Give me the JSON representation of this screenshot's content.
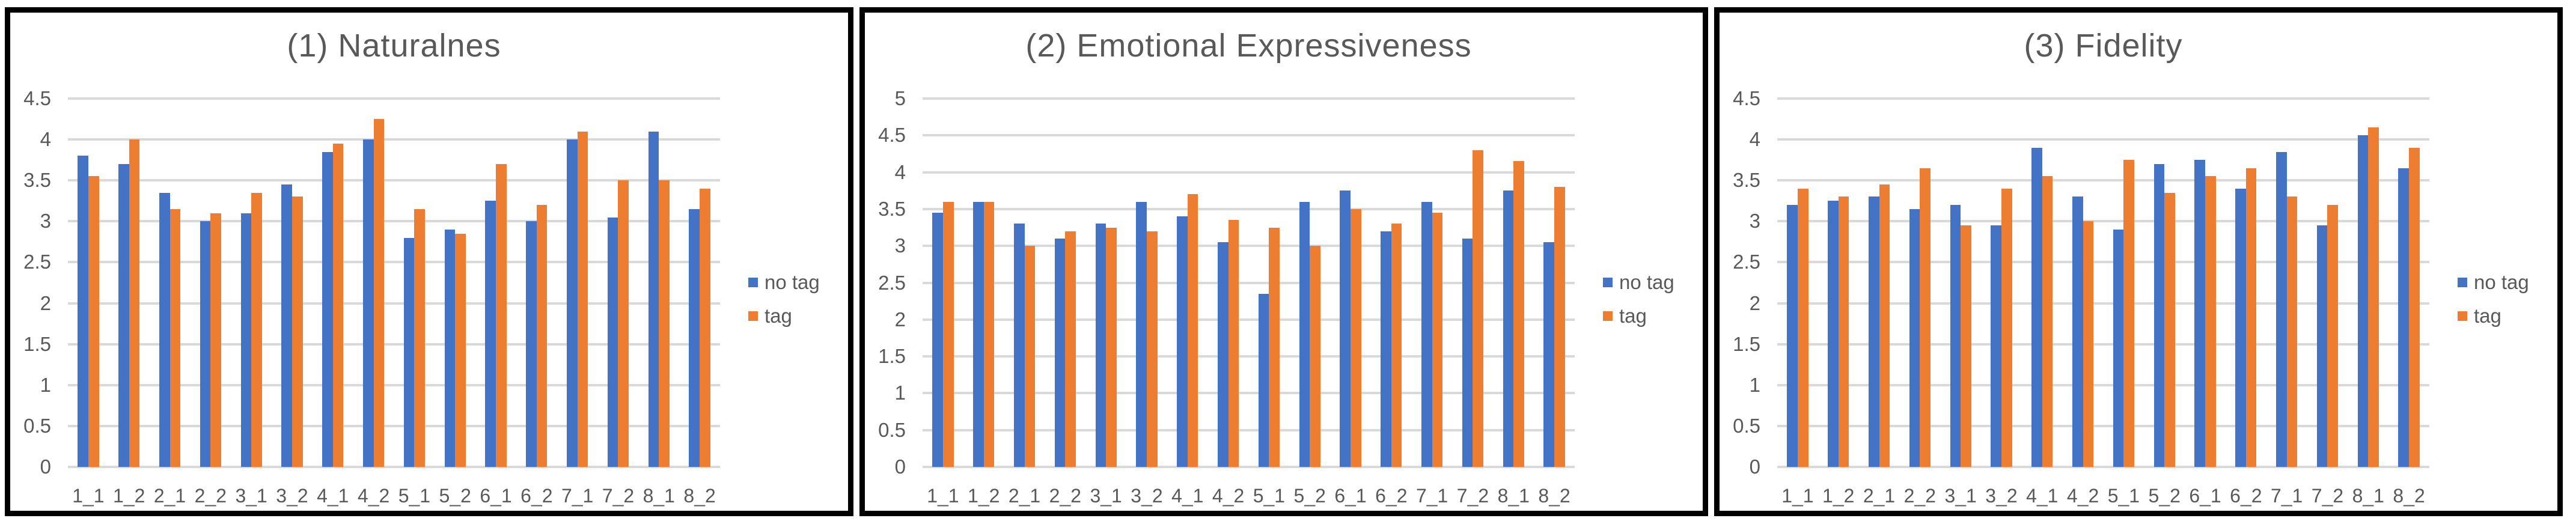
{
  "page": {
    "background": "#FFFFFF"
  },
  "colors": {
    "no_tag": "#4472C4",
    "tag": "#ED7D31",
    "gridline": "#D9D9D9",
    "axis_text": "#595959",
    "title_text": "#595959",
    "panel_border": "#000000",
    "panel_background": "#FFFFFF"
  },
  "chart_data": [
    {
      "type": "bar",
      "title": "(1) Naturalnes",
      "categories": [
        "1_1",
        "1_2",
        "2_1",
        "2_2",
        "3_1",
        "3_2",
        "4_1",
        "4_2",
        "5_1",
        "5_2",
        "6_1",
        "6_2",
        "7_1",
        "7_2",
        "8_1",
        "8_2"
      ],
      "series": [
        {
          "name": "no tag",
          "color": "#4472C4",
          "values": [
            3.8,
            3.7,
            3.35,
            3.0,
            3.1,
            3.45,
            3.85,
            4.0,
            2.8,
            2.9,
            3.25,
            3.0,
            4.0,
            3.05,
            4.1,
            3.15
          ]
        },
        {
          "name": "tag",
          "color": "#ED7D31",
          "values": [
            3.55,
            4.0,
            3.15,
            3.1,
            3.35,
            3.3,
            3.95,
            4.25,
            3.15,
            2.85,
            3.7,
            3.2,
            4.1,
            3.5,
            3.5,
            3.4
          ]
        }
      ],
      "xlabel": "",
      "ylabel": "",
      "ylim": [
        0,
        4.5
      ],
      "ytick_labels_top_to_bottom": [
        "4.5",
        "4",
        "3.5",
        "3",
        "2.5",
        "2",
        "1.5",
        "1",
        "0.5",
        "0"
      ],
      "grid": "horizontal",
      "legend_position": "right"
    },
    {
      "type": "bar",
      "title": "(2) Emotional Expressiveness",
      "categories": [
        "1_1",
        "1_2",
        "2_1",
        "2_2",
        "3_1",
        "3_2",
        "4_1",
        "4_2",
        "5_1",
        "5_2",
        "6_1",
        "6_2",
        "7_1",
        "7_2",
        "8_1",
        "8_2"
      ],
      "series": [
        {
          "name": "no tag",
          "color": "#4472C4",
          "values": [
            3.45,
            3.6,
            3.3,
            3.1,
            3.3,
            3.6,
            3.4,
            3.05,
            2.35,
            3.6,
            3.75,
            3.2,
            3.6,
            3.1,
            3.75,
            3.05
          ]
        },
        {
          "name": "tag",
          "color": "#ED7D31",
          "values": [
            3.6,
            3.6,
            3.0,
            3.2,
            3.25,
            3.2,
            3.7,
            3.35,
            3.25,
            3.0,
            3.5,
            3.3,
            3.45,
            4.3,
            4.15,
            3.8
          ]
        }
      ],
      "xlabel": "",
      "ylabel": "",
      "ylim": [
        0,
        5
      ],
      "ytick_labels_top_to_bottom": [
        "5",
        "4.5",
        "4",
        "3.5",
        "3",
        "2.5",
        "2",
        "1.5",
        "1",
        "0.5",
        "0"
      ],
      "grid": "horizontal",
      "legend_position": "right"
    },
    {
      "type": "bar",
      "title": "(3) Fidelity",
      "categories": [
        "1_1",
        "1_2",
        "2_1",
        "2_2",
        "3_1",
        "3_2",
        "4_1",
        "4_2",
        "5_1",
        "5_2",
        "6_1",
        "6_2",
        "7_1",
        "7_2",
        "8_1",
        "8_2"
      ],
      "series": [
        {
          "name": "no tag",
          "color": "#4472C4",
          "values": [
            3.2,
            3.25,
            3.3,
            3.15,
            3.2,
            2.95,
            3.9,
            3.3,
            2.9,
            3.7,
            3.75,
            3.4,
            3.85,
            2.95,
            4.05,
            3.65
          ]
        },
        {
          "name": "tag",
          "color": "#ED7D31",
          "values": [
            3.4,
            3.3,
            3.45,
            3.65,
            2.95,
            3.4,
            3.55,
            3.0,
            3.75,
            3.35,
            3.55,
            3.65,
            3.3,
            3.2,
            4.15,
            3.9
          ]
        }
      ],
      "xlabel": "",
      "ylabel": "",
      "ylim": [
        0,
        4.5
      ],
      "ytick_labels_top_to_bottom": [
        "4.5",
        "4",
        "3.5",
        "3",
        "2.5",
        "2",
        "1.5",
        "1",
        "0.5",
        "0"
      ],
      "grid": "horizontal",
      "legend_position": "right"
    }
  ]
}
